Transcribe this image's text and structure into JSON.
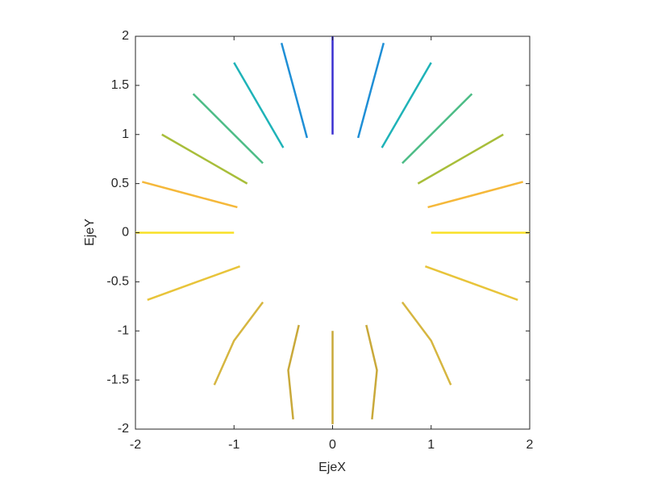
{
  "chart_data": {
    "type": "line",
    "x_label": "EjeX",
    "y_label": "EjeY",
    "xlim": [
      -2,
      2
    ],
    "ylim": [
      -2,
      2
    ],
    "xticks": [
      -2,
      -1,
      0,
      1,
      2
    ],
    "yticks": [
      -2,
      -1.5,
      -1,
      -0.5,
      0,
      0.5,
      1,
      1.5,
      2
    ],
    "series": [
      {
        "color": "#3a2fd0",
        "x": [
          0,
          0,
          0
        ],
        "values": [
          1,
          1.5,
          2
        ]
      },
      {
        "color": "#1f8fd6",
        "x": [
          0.259,
          0.388,
          0.518
        ],
        "values": [
          0.966,
          1.449,
          1.932
        ]
      },
      {
        "color": "#1f8fd6",
        "x": [
          -0.259,
          -0.388,
          -0.518
        ],
        "values": [
          0.966,
          1.449,
          1.932
        ]
      },
      {
        "color": "#1fb3b8",
        "x": [
          0.5,
          0.75,
          1
        ],
        "values": [
          0.866,
          1.299,
          1.732
        ]
      },
      {
        "color": "#1fb3b8",
        "x": [
          -0.5,
          -0.75,
          -1
        ],
        "values": [
          0.866,
          1.299,
          1.732
        ]
      },
      {
        "color": "#4cbc86",
        "x": [
          0.707,
          1.061,
          1.414
        ],
        "values": [
          0.707,
          1.061,
          1.414
        ]
      },
      {
        "color": "#4cbc86",
        "x": [
          -0.707,
          -1.061,
          -1.414
        ],
        "values": [
          0.707,
          1.061,
          1.414
        ]
      },
      {
        "color": "#a8be3a",
        "x": [
          0.866,
          1.299,
          1.732
        ],
        "values": [
          0.5,
          0.75,
          1
        ]
      },
      {
        "color": "#a8be3a",
        "x": [
          -0.866,
          -1.299,
          -1.732
        ],
        "values": [
          0.5,
          0.75,
          1
        ]
      },
      {
        "color": "#f5b83a",
        "x": [
          0.966,
          1.449,
          1.932
        ],
        "values": [
          0.259,
          0.388,
          0.518
        ]
      },
      {
        "color": "#f5b83a",
        "x": [
          -0.966,
          -1.449,
          -1.932
        ],
        "values": [
          0.259,
          0.388,
          0.518
        ]
      },
      {
        "color": "#f8e026",
        "x": [
          1,
          1.5,
          2
        ],
        "values": [
          0,
          0,
          0
        ]
      },
      {
        "color": "#f8e026",
        "x": [
          -1,
          -1.5,
          -2
        ],
        "values": [
          0,
          0,
          0
        ]
      },
      {
        "color": "#e8c43a",
        "x": [
          0.94,
          1.41,
          1.879
        ],
        "values": [
          -0.342,
          -0.513,
          -0.684
        ]
      },
      {
        "color": "#e8c43a",
        "x": [
          -0.94,
          -1.41,
          -1.879
        ],
        "values": [
          -0.342,
          -0.513,
          -0.684
        ]
      },
      {
        "color": "#d6b640",
        "x": [
          0.707,
          1,
          1.2
        ],
        "values": [
          -0.707,
          -1.1,
          -1.55
        ]
      },
      {
        "color": "#d6b640",
        "x": [
          -0.707,
          -1,
          -1.2
        ],
        "values": [
          -0.707,
          -1.1,
          -1.55
        ]
      },
      {
        "color": "#c9a93a",
        "x": [
          0.342,
          0.45,
          0.4
        ],
        "values": [
          -0.94,
          -1.4,
          -1.9
        ]
      },
      {
        "color": "#c9a93a",
        "x": [
          -0.342,
          -0.45,
          -0.4
        ],
        "values": [
          -0.94,
          -1.4,
          -1.9
        ]
      },
      {
        "color": "#c9a93a",
        "x": [
          0,
          0,
          0
        ],
        "values": [
          -1,
          -1.5,
          -1.95
        ]
      }
    ]
  }
}
